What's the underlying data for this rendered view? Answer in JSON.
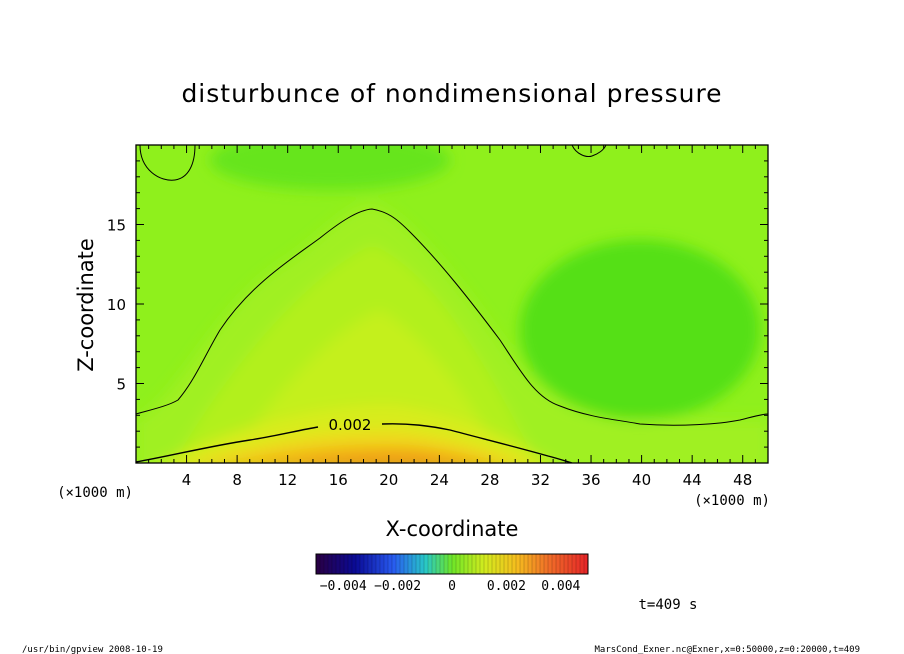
{
  "chart_data": {
    "type": "heatmap",
    "title": "disturbunce of nondimensional pressure",
    "xlabel": "X-coordinate",
    "ylabel": "Z-coordinate",
    "x_units": "(×1000 m)",
    "y_units": "(×1000 m)",
    "xlim": [
      0,
      50
    ],
    "ylim": [
      0,
      20
    ],
    "x_ticks": [
      4,
      8,
      12,
      16,
      20,
      24,
      28,
      32,
      36,
      40,
      44,
      48
    ],
    "y_ticks": [
      5,
      10,
      15
    ],
    "contour_label": "0.002",
    "colorbar": {
      "range": [
        -0.005,
        0.005
      ],
      "tick_values": [
        -0.004,
        -0.002,
        0,
        0.002,
        0.004
      ],
      "tick_labels": [
        "−0.004",
        "−0.002",
        "0",
        "0.002",
        "0.004"
      ]
    },
    "time_label": "t=409 s"
  },
  "footer": {
    "left": "/usr/bin/gpview   2008-10-19",
    "right": "MarsCond_Exner.nc@Exner,x=0:50000,z=0:20000,t=409"
  }
}
